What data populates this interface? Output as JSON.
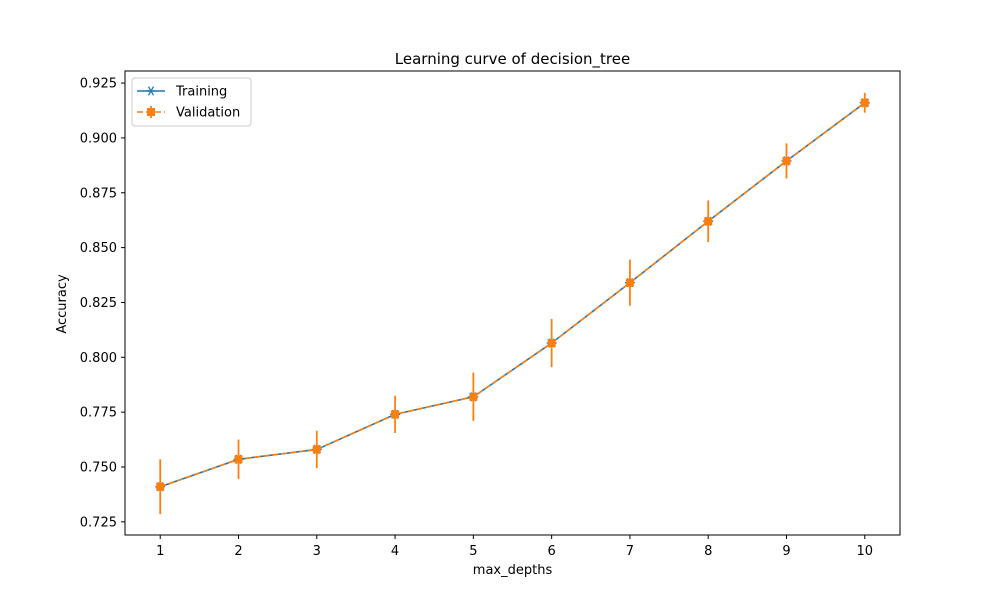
{
  "chart_data": {
    "type": "line",
    "title": "Learning curve of decision_tree",
    "xlabel": "max_depths",
    "ylabel": "Accuracy",
    "x": [
      1,
      2,
      3,
      4,
      5,
      6,
      7,
      8,
      9,
      10
    ],
    "xlim": [
      0.55,
      10.45
    ],
    "ylim": [
      0.719,
      0.9305
    ],
    "xticks": [
      "1",
      "2",
      "3",
      "4",
      "5",
      "6",
      "7",
      "8",
      "9",
      "10"
    ],
    "yticks": [
      {
        "value": 0.725,
        "label": "0.725"
      },
      {
        "value": 0.75,
        "label": "0.750"
      },
      {
        "value": 0.775,
        "label": "0.775"
      },
      {
        "value": 0.8,
        "label": "0.800"
      },
      {
        "value": 0.825,
        "label": "0.825"
      },
      {
        "value": 0.85,
        "label": "0.850"
      },
      {
        "value": 0.875,
        "label": "0.875"
      },
      {
        "value": 0.9,
        "label": "0.900"
      },
      {
        "value": 0.925,
        "label": "0.925"
      }
    ],
    "grid": false,
    "legend_position": "top-left",
    "series": [
      {
        "name": "Training",
        "color": "#1f77b4",
        "line_style": "solid",
        "marker": "star",
        "values": [
          0.741,
          0.7535,
          0.758,
          0.774,
          0.782,
          0.8065,
          0.834,
          0.862,
          0.8895,
          0.916
        ]
      },
      {
        "name": "Validation",
        "color": "#ff7f0e",
        "line_style": "dashed",
        "marker": "square",
        "values": [
          0.741,
          0.7535,
          0.758,
          0.774,
          0.782,
          0.8065,
          0.834,
          0.862,
          0.8895,
          0.916
        ],
        "errors": [
          0.0125,
          0.009,
          0.0085,
          0.0085,
          0.011,
          0.011,
          0.0105,
          0.0095,
          0.008,
          0.0045
        ]
      }
    ]
  }
}
